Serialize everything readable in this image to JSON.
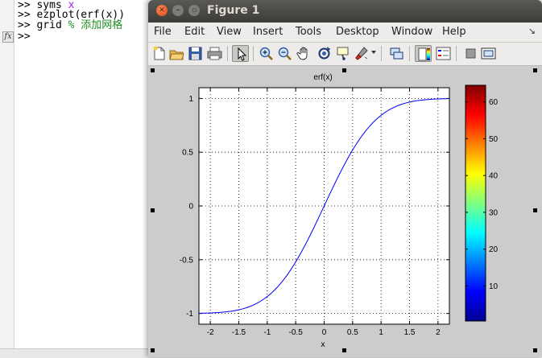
{
  "command_window": {
    "lines": [
      {
        "prompt": ">>",
        "code": "syms",
        "arg": "x"
      },
      {
        "prompt": ">>",
        "code": "ezplot(erf(x))"
      },
      {
        "prompt": ">>",
        "code": "grid",
        "comment": "% 添加网格"
      },
      {
        "prompt": ">>"
      }
    ],
    "fx_label": "fx"
  },
  "figure": {
    "title": "Figure 1",
    "menu": [
      "File",
      "Edit",
      "View",
      "Insert",
      "Tools",
      "Desktop",
      "Window",
      "Help"
    ],
    "menu_overflow": "↘",
    "toolbar": [
      "new-figure-icon",
      "open-file-icon",
      "save-icon",
      "print-icon",
      "edit-plot-arrow-icon",
      "zoom-in-icon",
      "zoom-out-icon",
      "pan-hand-icon",
      "rotate-3d-icon",
      "data-cursor-icon",
      "brush-icon",
      "link-plot-icon",
      "insert-colorbar-icon",
      "insert-legend-icon",
      "hide-plot-tools-icon",
      "show-plot-tools-icon"
    ]
  },
  "colors": {
    "curve": "#0000ff",
    "titlebar": "#3c3b37",
    "close_button": "#df4a16",
    "canvas_bg": "#cccccc"
  },
  "chart_data": {
    "type": "line",
    "title": "erf(x)",
    "xlabel": "x",
    "ylabel": "",
    "xlim": [
      -2.2,
      2.2
    ],
    "ylim": [
      -1.1,
      1.1
    ],
    "x_ticks": [
      -2,
      -1.5,
      -1,
      -0.5,
      0,
      0.5,
      1,
      1.5,
      2
    ],
    "x_tick_labels": [
      "-2",
      "-1.5",
      "-1",
      "-0.5",
      "0",
      "0.5",
      "1",
      "1.5",
      "2"
    ],
    "y_ticks": [
      -1,
      -0.5,
      0,
      0.5,
      1
    ],
    "y_tick_labels": [
      "-1",
      "-0.5",
      "0",
      "0.5",
      "1"
    ],
    "grid": true,
    "series": [
      {
        "x": [
          -2.2,
          -2.0,
          -1.8,
          -1.6,
          -1.4,
          -1.2,
          -1.0,
          -0.8,
          -0.6,
          -0.4,
          -0.2,
          0,
          0.2,
          0.4,
          0.6,
          0.8,
          1.0,
          1.2,
          1.4,
          1.6,
          1.8,
          2.0,
          2.2
        ],
        "y": [
          -0.998,
          -0.995,
          -0.989,
          -0.976,
          -0.952,
          -0.91,
          -0.843,
          -0.742,
          -0.604,
          -0.428,
          -0.223,
          0,
          0.223,
          0.428,
          0.604,
          0.742,
          0.843,
          0.91,
          0.952,
          0.976,
          0.989,
          0.995,
          0.998
        ]
      }
    ],
    "colorbar": {
      "colormap": "jet",
      "range": [
        1,
        64
      ],
      "tick_values": [
        10,
        20,
        30,
        40,
        50,
        60
      ],
      "tick_labels": [
        "10",
        "20",
        "30",
        "40",
        "50",
        "60"
      ]
    }
  }
}
